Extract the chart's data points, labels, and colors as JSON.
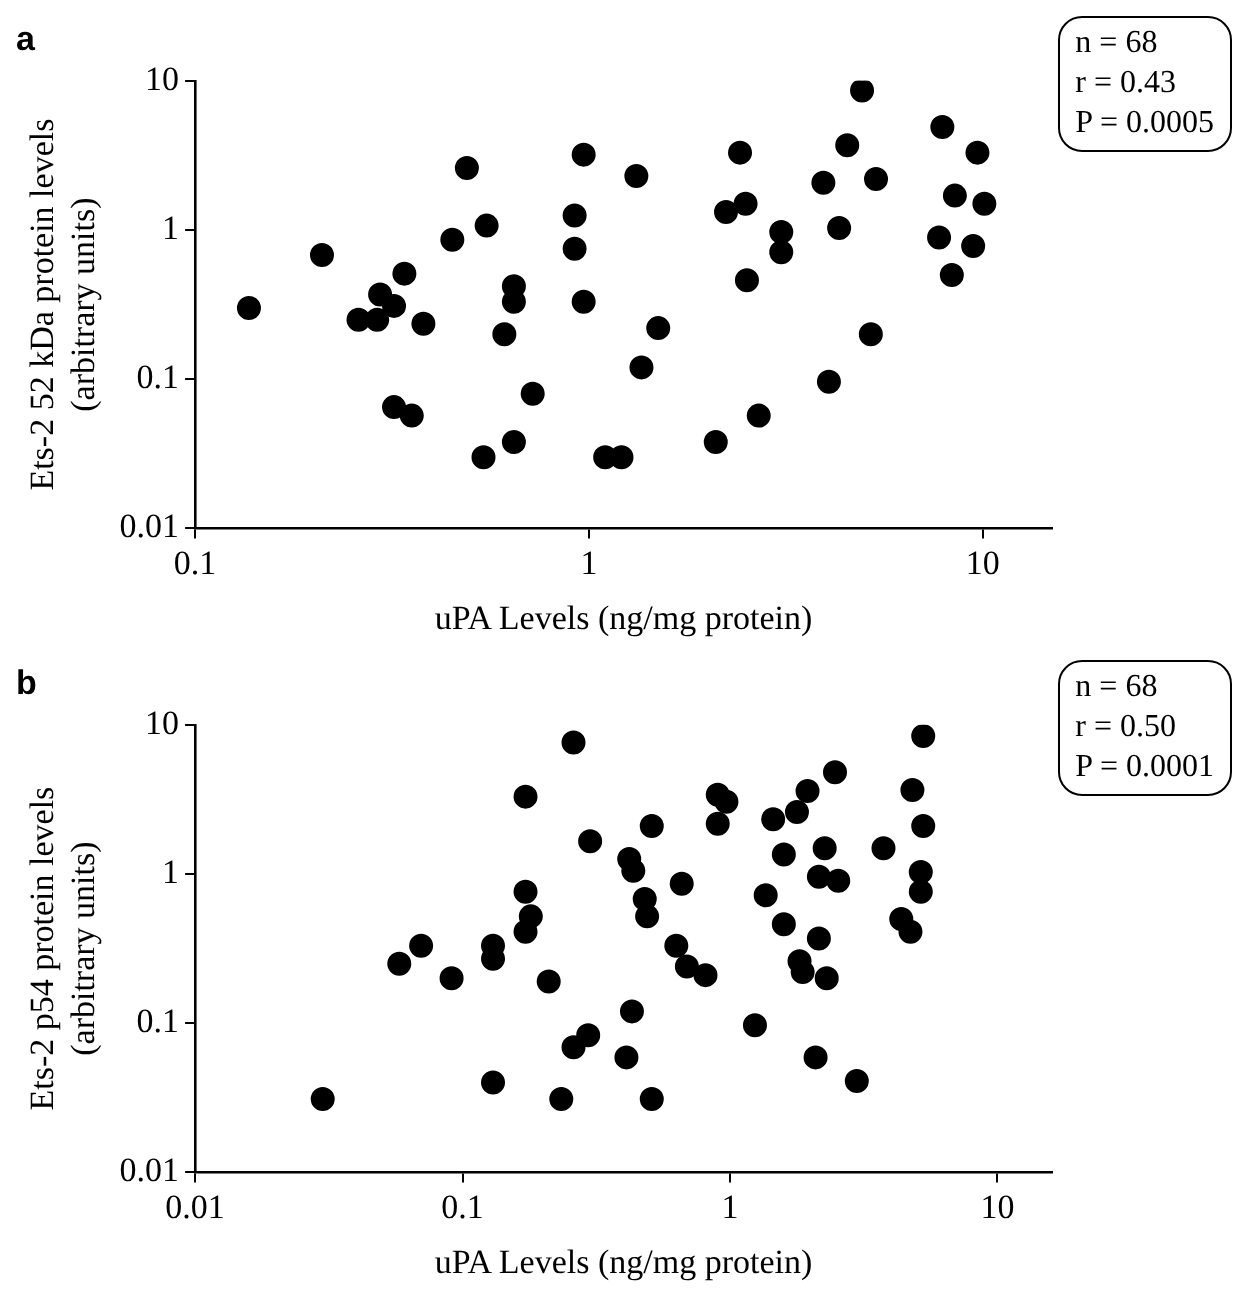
{
  "chart_data": [
    {
      "type": "scatter",
      "title": "a",
      "xlabel": "uPA Levels (ng/mg protein)",
      "ylabel": "Ets-2 52 kDa protein levels (arbitrary units)",
      "log": "xy",
      "grid": false,
      "marker": "circle",
      "xlim": [
        0.1,
        15
      ],
      "xticks": [
        0.1,
        1,
        10
      ],
      "ylim": [
        0.01,
        10
      ],
      "yticks": [
        0.01,
        0.1,
        1,
        10
      ],
      "annotations": [
        "n = 68",
        "r = 0.43",
        "P = 0.0005"
      ],
      "series": [
        {
          "color": "#000000",
          "x": [
            0.137,
            0.21,
            0.26,
            0.29,
            0.295,
            0.32,
            0.34,
            0.38,
            0.32,
            0.355,
            0.45,
            0.49,
            0.55,
            0.54,
            0.645,
            0.645,
            0.61,
            0.645,
            0.72,
            0.92,
            0.92,
            0.97,
            0.97,
            1.1,
            1.21,
            1.32,
            1.36,
            1.5,
            2.1,
            2.23,
            2.42,
            2.5,
            2.52,
            2.7,
            3.08,
            3.08,
            3.94,
            4.07,
            4.32,
            4.53,
            4.94,
            5.2,
            5.36,
            7.75,
            7.9,
            8.35,
            8.5,
            9.46,
            9.7,
            10.1
          ],
          "values": [
            0.3,
            0.68,
            0.25,
            0.25,
            0.37,
            0.31,
            0.51,
            0.235,
            0.065,
            0.057,
            0.86,
            2.6,
            1.07,
            0.03,
            0.42,
            0.33,
            0.2,
            0.038,
            0.08,
            1.25,
            0.75,
            3.2,
            0.33,
            0.03,
            0.03,
            2.3,
            0.12,
            0.22,
            0.038,
            1.32,
            3.3,
            1.5,
            0.46,
            0.057,
            0.97,
            0.71,
            2.07,
            0.096,
            1.03,
            3.7,
            8.6,
            0.2,
            2.2,
            0.89,
            4.9,
            0.5,
            1.7,
            0.78,
            3.3,
            1.5
          ]
        }
      ]
    },
    {
      "type": "scatter",
      "title": "b",
      "xlabel": "uPA Levels (ng/mg protein)",
      "ylabel": "Ets-2 p54 protein levels (arbitrary units)",
      "log": "xy",
      "grid": false,
      "marker": "circle",
      "xlim": [
        0.01,
        16
      ],
      "xticks": [
        0.01,
        0.1,
        1,
        10
      ],
      "ylim": [
        0.01,
        10
      ],
      "yticks": [
        0.01,
        0.1,
        1,
        10
      ],
      "annotations": [
        "n = 68",
        "r = 0.50",
        "P = 0.0001"
      ],
      "series": [
        {
          "color": "#000000",
          "x": [
            0.03,
            0.058,
            0.07,
            0.091,
            0.13,
            0.13,
            0.13,
            0.172,
            0.172,
            0.172,
            0.18,
            0.21,
            0.234,
            0.26,
            0.26,
            0.295,
            0.3,
            0.41,
            0.42,
            0.435,
            0.43,
            0.48,
            0.49,
            0.51,
            0.51,
            0.66,
            0.63,
            0.69,
            0.81,
            0.9,
            0.97,
            0.9,
            1.24,
            1.36,
            1.45,
            1.59,
            1.59,
            1.78,
            1.82,
            1.87,
            1.95,
            2.09,
            2.15,
            2.15,
            2.26,
            2.3,
            2.47,
            2.54,
            2.98,
            3.75,
            4.37,
            4.73,
            4.81,
            5.28,
            5.28,
            5.17,
            5.17
          ],
          "values": [
            0.031,
            0.25,
            0.33,
            0.2,
            0.33,
            0.27,
            0.04,
            3.3,
            0.76,
            0.41,
            0.52,
            0.19,
            0.031,
            7.6,
            0.069,
            0.083,
            1.66,
            0.059,
            1.26,
            1.05,
            0.12,
            0.68,
            0.52,
            2.1,
            0.031,
            0.86,
            0.33,
            0.24,
            0.21,
            3.4,
            3.05,
            2.17,
            0.097,
            0.72,
            2.33,
            1.35,
            0.46,
            2.6,
            0.26,
            0.22,
            3.6,
            0.059,
            0.37,
            0.96,
            1.49,
            0.2,
            4.8,
            0.9,
            0.041,
            1.49,
            0.5,
            0.41,
            3.65,
            8.4,
            2.1,
            1.03,
            0.76
          ]
        }
      ]
    }
  ]
}
